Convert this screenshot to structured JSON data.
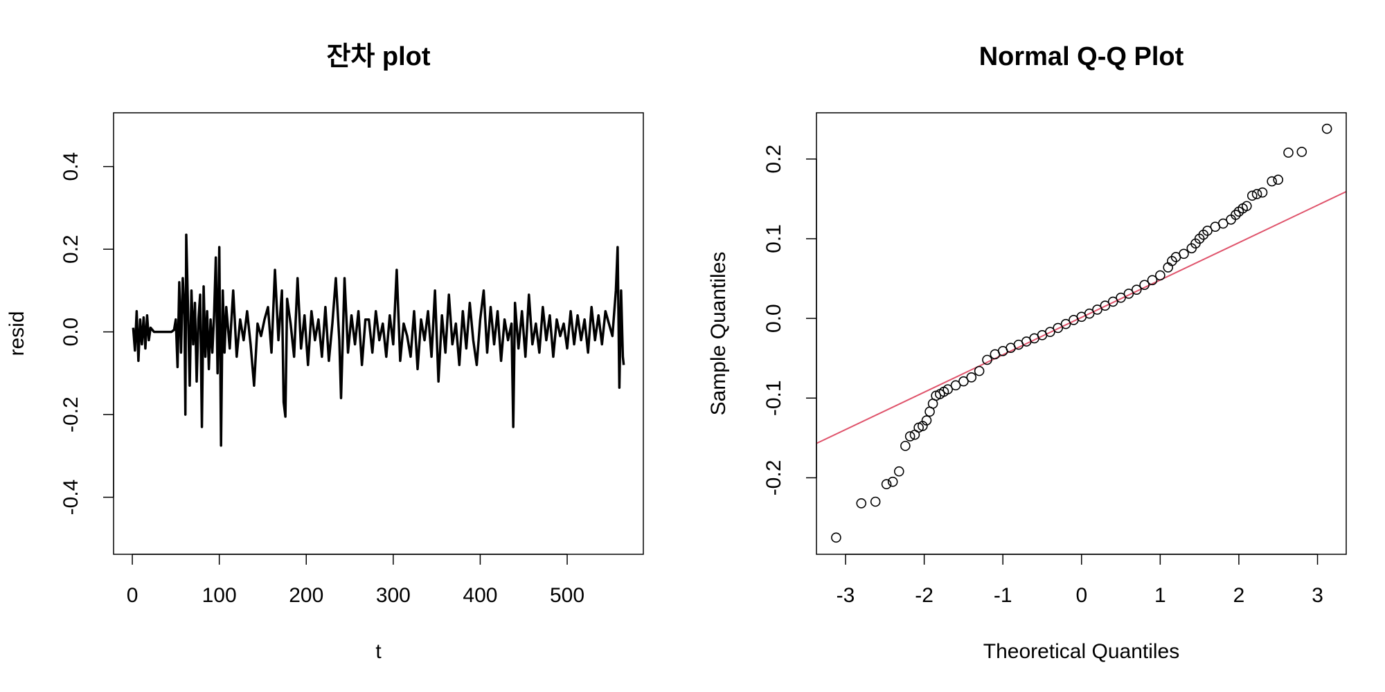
{
  "chart_data": [
    {
      "type": "line",
      "title": "잔차 plot",
      "xlabel": "t",
      "ylabel": "resid",
      "x": [
        1,
        3,
        5,
        7,
        9,
        11,
        13,
        15,
        17,
        19,
        21,
        25,
        30,
        35,
        40,
        45,
        48,
        50,
        52,
        54,
        56,
        58,
        60,
        61,
        62,
        64,
        66,
        68,
        70,
        72,
        74,
        76,
        78,
        80,
        82,
        84,
        86,
        88,
        90,
        92,
        94,
        96,
        98,
        100,
        102,
        104,
        106,
        108,
        112,
        116,
        120,
        124,
        128,
        132,
        136,
        140,
        144,
        148,
        152,
        156,
        160,
        164,
        168,
        172,
        174,
        176,
        178,
        182,
        186,
        190,
        194,
        198,
        202,
        206,
        210,
        214,
        218,
        222,
        226,
        230,
        234,
        238,
        240,
        244,
        248,
        252,
        256,
        260,
        264,
        268,
        272,
        276,
        280,
        284,
        288,
        292,
        296,
        300,
        304,
        308,
        312,
        316,
        320,
        324,
        328,
        332,
        336,
        340,
        344,
        348,
        352,
        356,
        360,
        364,
        368,
        372,
        376,
        380,
        384,
        388,
        392,
        396,
        400,
        404,
        408,
        412,
        416,
        420,
        424,
        428,
        432,
        436,
        438,
        440,
        444,
        448,
        452,
        456,
        460,
        464,
        468,
        472,
        476,
        480,
        484,
        488,
        492,
        496,
        500,
        504,
        508,
        512,
        516,
        520,
        524,
        528,
        532,
        536,
        540,
        544,
        548,
        552,
        556,
        558,
        560,
        562,
        564,
        565
      ],
      "series": [
        {
          "color": "#000000",
          "values": [
            0.01,
            -0.045,
            0.05,
            -0.07,
            0.03,
            -0.03,
            0.035,
            -0.04,
            0.04,
            -0.02,
            0.01,
            0,
            0,
            0,
            0,
            0,
            0.005,
            0.03,
            -0.085,
            0.12,
            -0.05,
            0.13,
            0.04,
            -0.2,
            0.235,
            0.06,
            -0.13,
            0.1,
            -0.03,
            0.07,
            -0.12,
            0.03,
            0.09,
            -0.23,
            0.11,
            -0.06,
            0.05,
            -0.09,
            0.03,
            -0.05,
            0.04,
            0.18,
            -0.1,
            0.205,
            -0.275,
            0.1,
            -0.05,
            0.06,
            -0.04,
            0.1,
            -0.06,
            0.03,
            -0.02,
            0.05,
            -0.03,
            -0.13,
            0.02,
            -0.01,
            0.03,
            0.06,
            -0.05,
            0.15,
            -0.02,
            0.1,
            -0.17,
            -0.205,
            0.08,
            0.02,
            -0.06,
            0.13,
            -0.04,
            0.04,
            -0.08,
            0.05,
            -0.02,
            0.03,
            -0.06,
            0.06,
            -0.07,
            0.02,
            0.13,
            -0.02,
            -0.16,
            0.13,
            -0.05,
            0.04,
            -0.03,
            0.05,
            -0.08,
            0.03,
            0.03,
            -0.05,
            0.05,
            -0.02,
            0.02,
            -0.06,
            0.04,
            -0.03,
            0.15,
            -0.07,
            0.02,
            -0.01,
            -0.06,
            0.05,
            -0.09,
            0.03,
            -0.02,
            0.05,
            -0.06,
            0.1,
            -0.12,
            0.04,
            -0.05,
            0.09,
            -0.03,
            0.02,
            -0.08,
            0.05,
            -0.04,
            0.07,
            -0.02,
            -0.08,
            0.03,
            0.1,
            -0.05,
            0.06,
            -0.03,
            0.05,
            -0.07,
            0.03,
            -0.02,
            0.02,
            -0.23,
            0.07,
            -0.04,
            0.05,
            -0.06,
            0.09,
            -0.03,
            0.02,
            -0.05,
            0.06,
            -0.02,
            0.04,
            -0.06,
            0.03,
            -0.01,
            0.02,
            -0.04,
            0.05,
            -0.03,
            0.04,
            -0.02,
            0.03,
            -0.05,
            0.06,
            -0.02,
            0.04,
            -0.03,
            0.05,
            0.02,
            -0.01,
            0.1,
            0.205,
            -0.135,
            0.1,
            -0.06,
            -0.08
          ]
        }
      ],
      "xlim": [
        -21.56,
        587.56
      ],
      "ylim": [
        -0.538,
        0.53
      ],
      "xticks": [
        0,
        100,
        200,
        300,
        400,
        500
      ],
      "yticks": [
        -0.4,
        -0.2,
        {
          "value": 0,
          "label": "0.0"
        },
        0.2,
        0.4
      ]
    },
    {
      "type": "scatter",
      "title": "Normal Q-Q Plot",
      "xlabel": "Theoretical Quantiles",
      "ylabel": "Sample Quantiles",
      "x": [
        -3.12,
        -2.8,
        -2.62,
        -2.48,
        -2.4,
        -2.32,
        -2.24,
        -2.18,
        -2.12,
        -2.07,
        -2.02,
        -1.97,
        -1.93,
        -1.89,
        -1.85,
        -1.8,
        -1.75,
        -1.7,
        -1.6,
        -1.5,
        -1.4,
        -1.3,
        -1.2,
        -1.1,
        -1.0,
        -0.9,
        -0.8,
        -0.7,
        -0.6,
        -0.5,
        -0.4,
        -0.3,
        -0.2,
        -0.1,
        0,
        0.1,
        0.2,
        0.3,
        0.4,
        0.5,
        0.6,
        0.7,
        0.8,
        0.9,
        1.0,
        1.1,
        1.15,
        1.2,
        1.3,
        1.4,
        1.45,
        1.5,
        1.55,
        1.6,
        1.7,
        1.8,
        1.9,
        1.96,
        2.0,
        2.05,
        2.1,
        2.17,
        2.23,
        2.3,
        2.42,
        2.5,
        2.63,
        2.8,
        3.12
      ],
      "series": [
        {
          "color": "#000000",
          "values": [
            -0.275,
            -0.232,
            -0.23,
            -0.208,
            -0.205,
            -0.192,
            -0.16,
            -0.148,
            -0.146,
            -0.137,
            -0.135,
            -0.128,
            -0.117,
            -0.107,
            -0.097,
            -0.095,
            -0.092,
            -0.089,
            -0.084,
            -0.079,
            -0.074,
            -0.066,
            -0.052,
            -0.045,
            -0.041,
            -0.037,
            -0.033,
            -0.029,
            -0.025,
            -0.021,
            -0.017,
            -0.012,
            -0.007,
            -0.002,
            0.002,
            0.006,
            0.011,
            0.016,
            0.021,
            0.026,
            0.031,
            0.036,
            0.042,
            0.048,
            0.054,
            0.064,
            0.072,
            0.077,
            0.081,
            0.088,
            0.094,
            0.1,
            0.105,
            0.11,
            0.115,
            0.119,
            0.124,
            0.13,
            0.134,
            0.138,
            0.141,
            0.154,
            0.156,
            0.158,
            0.172,
            0.174,
            0.208,
            0.209,
            0.238
          ]
        }
      ],
      "reference_line": {
        "color": "#DF536B",
        "x": [
          -3,
          3
        ],
        "y": [
          -0.1395,
          0.142
        ]
      },
      "xlim": [
        -3.37,
        3.365
      ],
      "ylim": [
        -0.296,
        0.258
      ],
      "xticks": [
        -3,
        -2,
        -1,
        0,
        1,
        2,
        3
      ],
      "yticks": [
        -0.2,
        -0.1,
        {
          "value": 0,
          "label": "0.0"
        },
        0.1,
        0.2
      ]
    }
  ]
}
